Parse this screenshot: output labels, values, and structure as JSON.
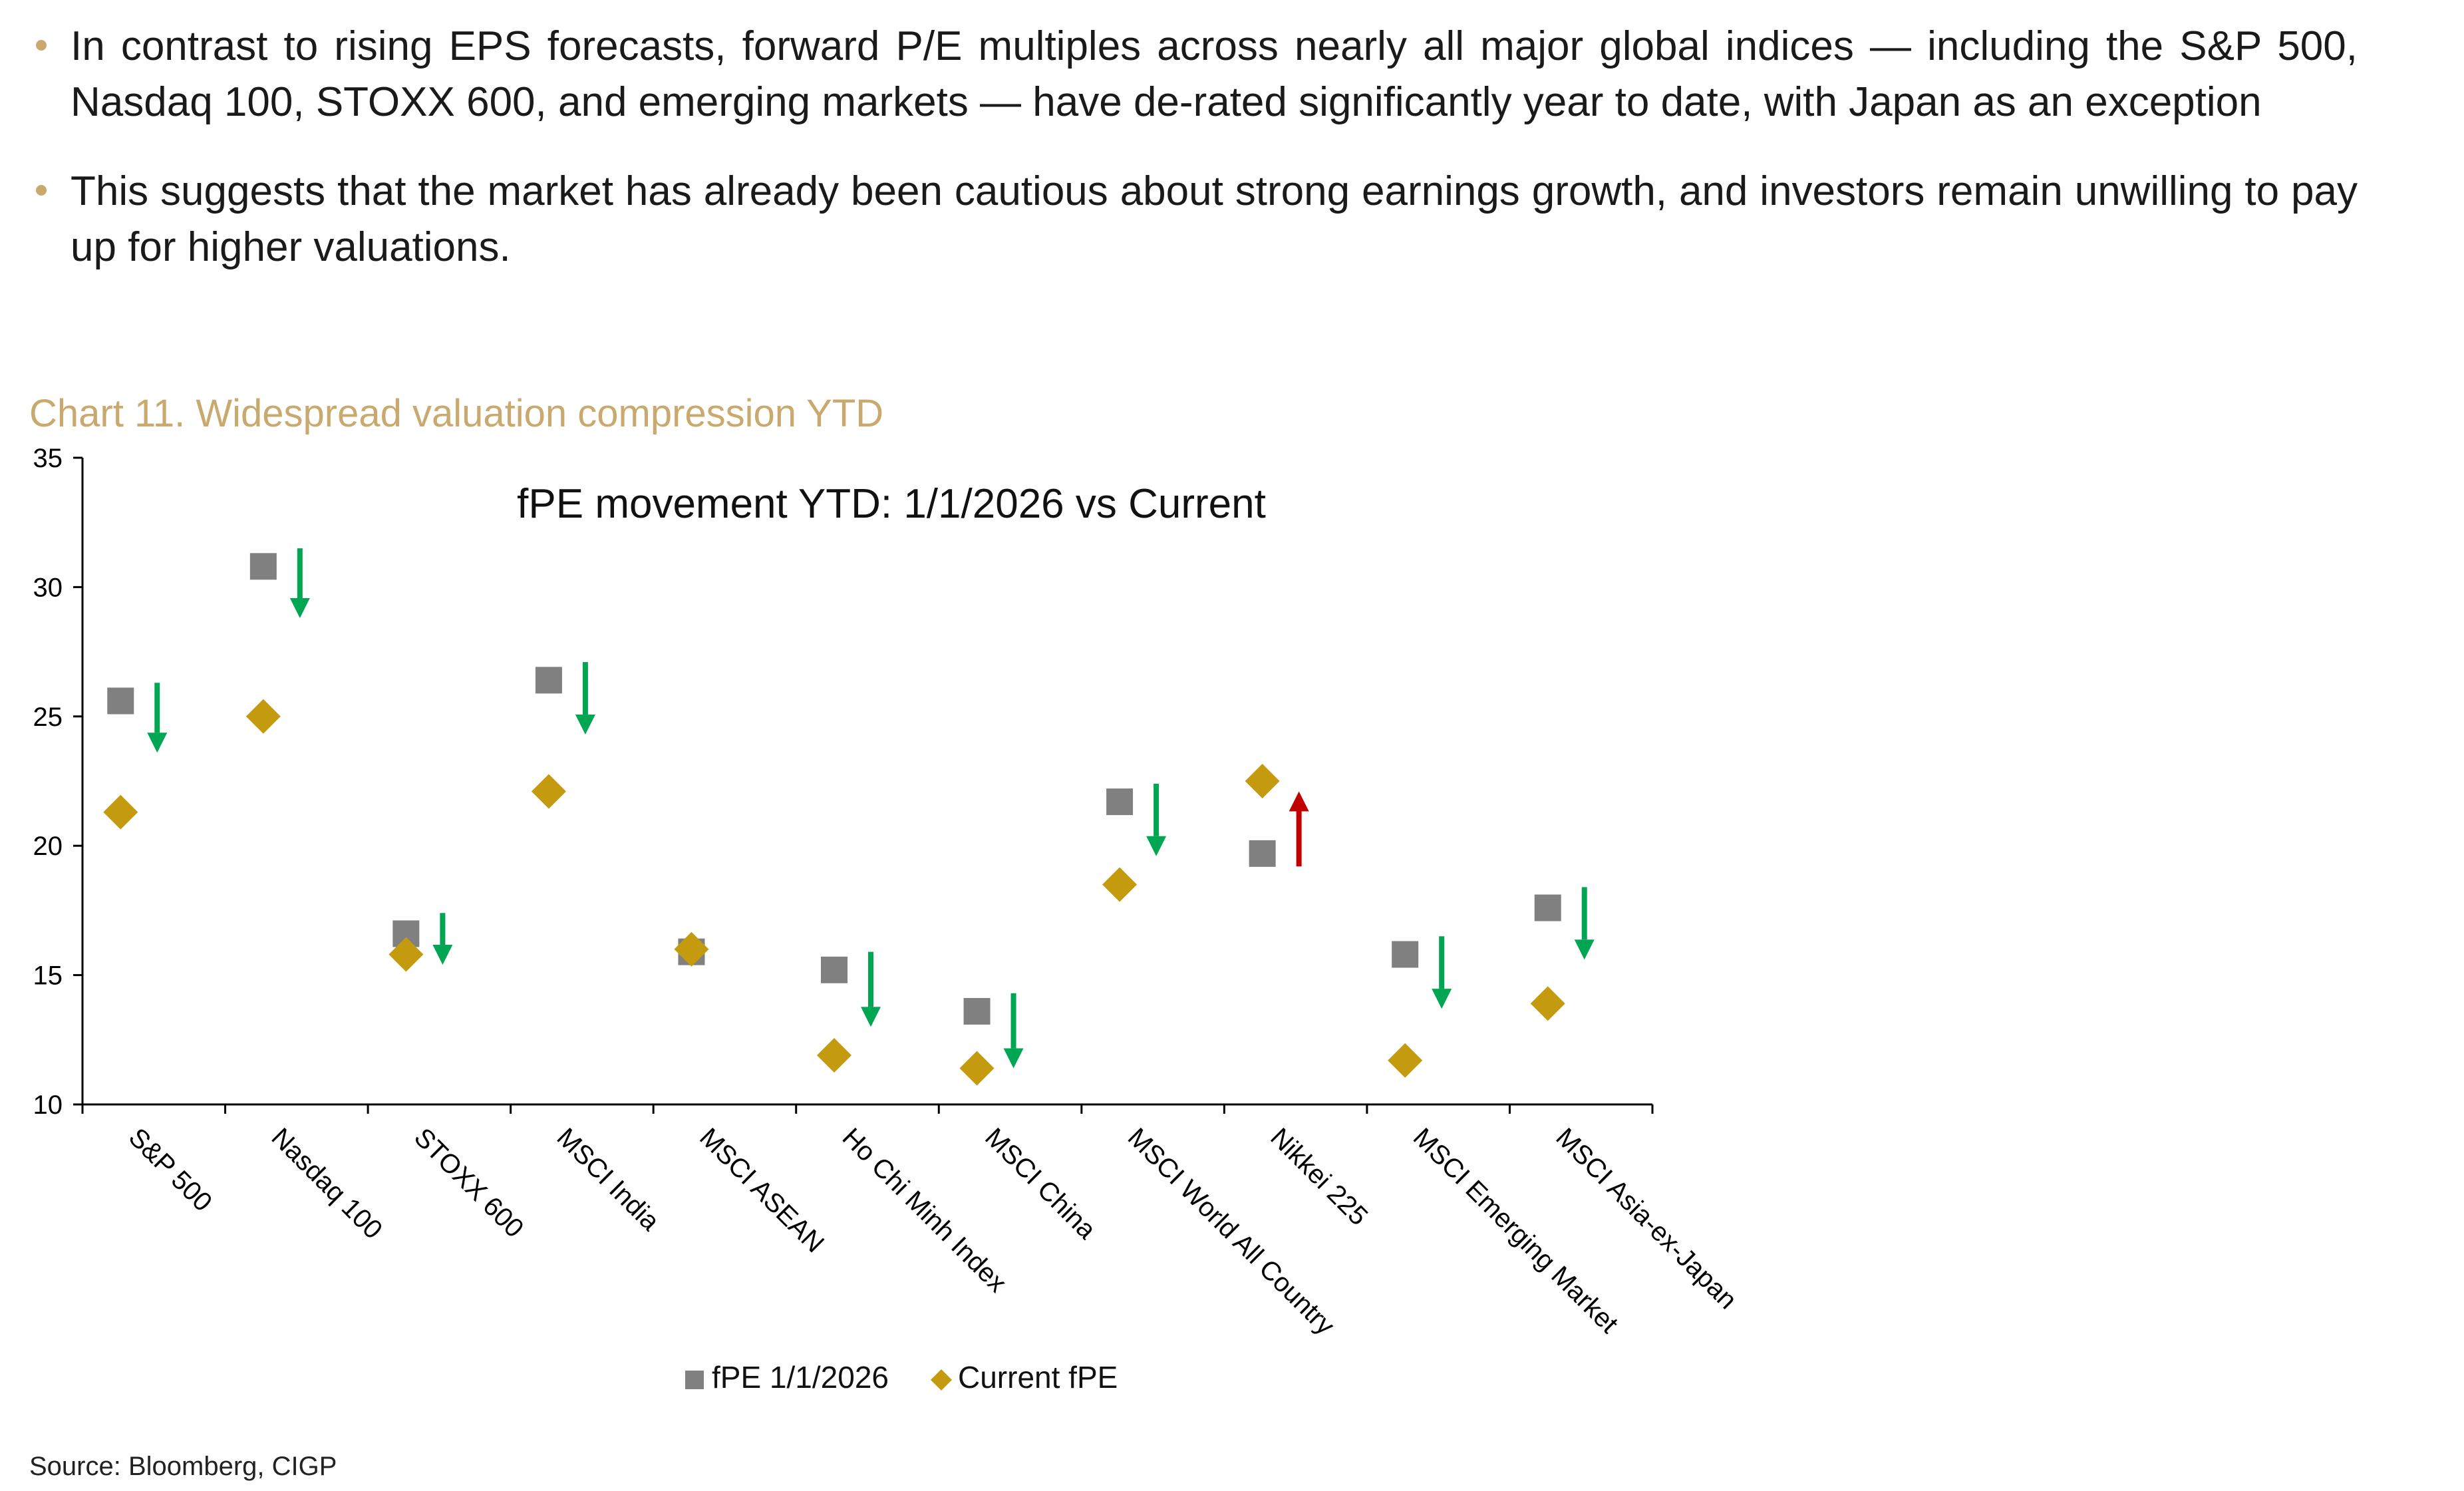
{
  "bullets": [
    "In contrast to rising EPS forecasts, forward P/E multiples across nearly all major global indices — including the S&P 500, Nasdaq 100, STOXX 600, and emerging markets — have de-rated significantly year to date, with Japan as an exception",
    "This suggests that the market has already been cautious about strong earnings growth, and investors remain unwilling to pay up for higher valuations."
  ],
  "chart_caption": "Chart 11. Widespread valuation compression YTD",
  "source": "Source: Bloomberg, CIGP",
  "colors": {
    "accent": "#c9a96e",
    "start_marker": "#808080",
    "current_marker": "#c49a0e",
    "down_arrow": "#00a651",
    "up_arrow": "#c00000"
  },
  "chart_data": {
    "type": "scatter",
    "title": "fPE movement YTD: 1/1/2026 vs Current",
    "xlabel": "",
    "ylabel": "",
    "ylim": [
      10,
      35
    ],
    "yticks": [
      10,
      15,
      20,
      25,
      30,
      35
    ],
    "grid": false,
    "legend_position": "bottom",
    "categories": [
      "S&P 500",
      "Nasdaq 100",
      "STOXX 600",
      "MSCI India",
      "MSCI ASEAN",
      "Ho Chi Minh Index",
      "MSCI China",
      "MSCI World All Country",
      "Nikkei 225",
      "MSCI Emerging Market",
      "MSCI Asia-ex-Japan"
    ],
    "series": [
      {
        "name": "fPE 1/1/2026",
        "marker": "square",
        "values": [
          25.6,
          30.8,
          16.6,
          26.4,
          15.9,
          15.2,
          13.6,
          21.7,
          19.7,
          15.8,
          17.6
        ]
      },
      {
        "name": "Current fPE",
        "marker": "diamond",
        "values": [
          21.3,
          25.0,
          15.8,
          22.1,
          16.0,
          11.9,
          11.4,
          18.5,
          22.5,
          11.7,
          13.9
        ]
      }
    ],
    "arrows": [
      {
        "direction": "down",
        "from": 26.3,
        "to": 23.6
      },
      {
        "direction": "down",
        "from": 31.5,
        "to": 28.8
      },
      {
        "direction": "down",
        "from": 17.4,
        "to": 15.4
      },
      {
        "direction": "down",
        "from": 27.1,
        "to": 24.3
      },
      null,
      {
        "direction": "down",
        "from": 15.9,
        "to": 13.0
      },
      {
        "direction": "down",
        "from": 14.3,
        "to": 11.4
      },
      {
        "direction": "down",
        "from": 22.4,
        "to": 19.6
      },
      {
        "direction": "up",
        "from": 19.2,
        "to": 22.1
      },
      {
        "direction": "down",
        "from": 16.5,
        "to": 13.7
      },
      {
        "direction": "down",
        "from": 18.4,
        "to": 15.6
      }
    ]
  }
}
